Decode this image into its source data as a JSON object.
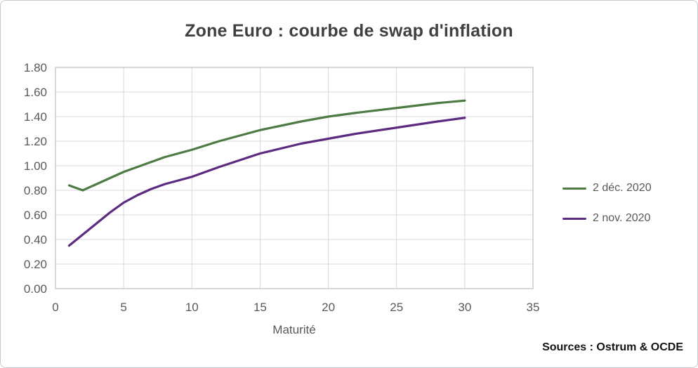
{
  "footer": {
    "source": "Sources : Ostrum & OCDE"
  },
  "theme": {
    "title_color": "#404040",
    "tick_color": "#595959",
    "grid_color": "#d9d9d9",
    "plot_border_color": "#bfbfbf",
    "frame_border_color": "#c2cad2"
  },
  "chart_data": {
    "type": "line",
    "title": "Zone Euro : courbe de swap d'inflation",
    "xlabel": "Maturité",
    "ylabel": "",
    "xlim": [
      0,
      35
    ],
    "ylim": [
      0,
      1.8
    ],
    "x_ticks": [
      "0",
      "5",
      "10",
      "15",
      "20",
      "25",
      "30",
      "35"
    ],
    "y_ticks": [
      "0.00",
      "0.20",
      "0.40",
      "0.60",
      "0.80",
      "1.00",
      "1.20",
      "1.40",
      "1.60",
      "1.80"
    ],
    "grid": true,
    "legend_position": "right",
    "series": [
      {
        "name": "2 déc. 2020",
        "color": "#4e7b44",
        "x": [
          1,
          2,
          3,
          4,
          5,
          6,
          7,
          8,
          9,
          10,
          12,
          15,
          18,
          20,
          22,
          25,
          28,
          30
        ],
        "y": [
          0.84,
          0.8,
          0.85,
          0.9,
          0.95,
          0.99,
          1.03,
          1.07,
          1.1,
          1.13,
          1.2,
          1.29,
          1.36,
          1.4,
          1.43,
          1.47,
          1.51,
          1.53
        ]
      },
      {
        "name": "2 nov. 2020",
        "color": "#5c2b80",
        "x": [
          1,
          2,
          3,
          4,
          5,
          6,
          7,
          8,
          9,
          10,
          12,
          15,
          18,
          20,
          22,
          25,
          28,
          30
        ],
        "y": [
          0.35,
          0.44,
          0.53,
          0.62,
          0.7,
          0.76,
          0.81,
          0.85,
          0.88,
          0.91,
          0.99,
          1.1,
          1.18,
          1.22,
          1.26,
          1.31,
          1.36,
          1.39
        ]
      }
    ]
  }
}
